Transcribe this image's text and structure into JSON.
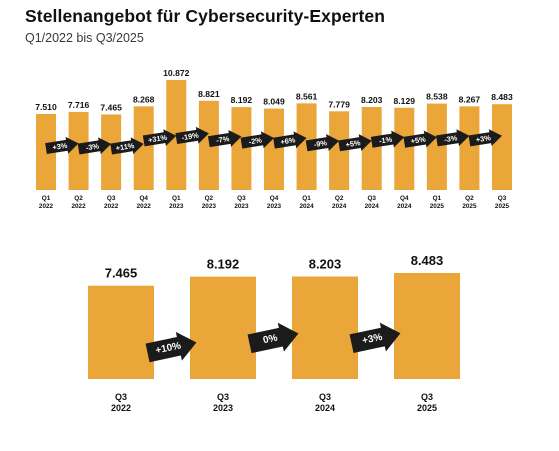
{
  "title": "Stellenangebot für Cybersecurity-Experten",
  "subtitle": "Q1/2022 bis Q3/2025",
  "colors": {
    "bar": "#EBA63A",
    "arrow": "#1b1b1b",
    "arrow_text": "#ffffff"
  },
  "chart_data": [
    {
      "type": "bar",
      "categories": [
        "Q1|2022",
        "Q2|2022",
        "Q3|2022",
        "Q4|2022",
        "Q1|2023",
        "Q2|2023",
        "Q3|2023",
        "Q4|2023",
        "Q1|2024",
        "Q2|2024",
        "Q3|2024",
        "Q4|2024",
        "Q1|2025",
        "Q2|2025",
        "Q3|2025"
      ],
      "values": [
        7510,
        7716,
        7465,
        8268,
        10872,
        8821,
        8192,
        8049,
        8561,
        7779,
        8203,
        8129,
        8538,
        8267,
        8483
      ],
      "value_labels": [
        "7.510",
        "7.716",
        "7.465",
        "8.268",
        "10.872",
        "8.821",
        "8.192",
        "8.049",
        "8.561",
        "7.779",
        "8.203",
        "8.129",
        "8.538",
        "8.267",
        "8.483"
      ],
      "changes": [
        "+3%",
        "-3%",
        "+11%",
        "+31%",
        "-19%",
        "-7%",
        "-2%",
        "+6%",
        "-9%",
        "+5%",
        "-1%",
        "+5%",
        "-3%",
        "+3%"
      ],
      "ylim": [
        0,
        10872
      ]
    },
    {
      "type": "bar",
      "categories": [
        "Q3|2022",
        "Q3|2023",
        "Q3|2024",
        "Q3|2025"
      ],
      "values": [
        7465,
        8192,
        8203,
        8483
      ],
      "value_labels": [
        "7.465",
        "8.192",
        "8.203",
        "8.483"
      ],
      "changes": [
        "+10%",
        "0%",
        "+3%"
      ],
      "ylim": [
        0,
        8483
      ]
    }
  ]
}
